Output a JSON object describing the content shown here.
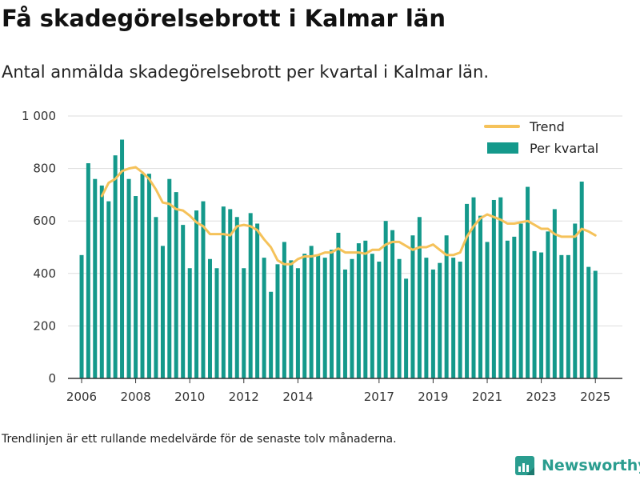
{
  "title": "Få skadegörelsebrott i Kalmar län",
  "subtitle": "Antal anmälda skadegörelsebrott per kvartal i Kalmar län.",
  "footnote": "Trendlinjen är ett rullande medelvärde för de senaste tolv månaderna.",
  "brand": {
    "name": "Newsworthy",
    "icon": "newsworthy-logo-icon"
  },
  "colors": {
    "bars": "#14998b",
    "trend": "#f5c25a",
    "grid": "#dddddd",
    "axis": "#333333"
  },
  "chart_data": {
    "type": "bar",
    "grid": true,
    "legend_position": "top-right",
    "ylim": [
      0,
      1000
    ],
    "y_ticks": [
      {
        "value": 0,
        "label": "0"
      },
      {
        "value": 200,
        "label": "200"
      },
      {
        "value": 400,
        "label": "400"
      },
      {
        "value": 600,
        "label": "600"
      },
      {
        "value": 800,
        "label": "800"
      },
      {
        "value": 1000,
        "label": "1 000"
      }
    ],
    "x_ticks": [
      {
        "date": "2006-01-01",
        "label": "2006"
      },
      {
        "date": "2008-01-01",
        "label": "2008"
      },
      {
        "date": "2010-01-01",
        "label": "2010"
      },
      {
        "date": "2012-01-01",
        "label": "2012"
      },
      {
        "date": "2014-01-01",
        "label": "2014"
      },
      {
        "date": "2017-01-01",
        "label": "2017"
      },
      {
        "date": "2019-01-01",
        "label": "2019"
      },
      {
        "date": "2021-01-01",
        "label": "2021"
      },
      {
        "date": "2023-01-01",
        "label": "2023"
      },
      {
        "date": "2025-01-01",
        "label": "2025"
      }
    ],
    "x_range": [
      "2005-07-01",
      "2026-01-01"
    ],
    "series": [
      {
        "name": "Per kvartal",
        "type": "bar",
        "x": [
          "2006-01-01",
          "2006-04-01",
          "2006-07-01",
          "2006-10-01",
          "2007-01-01",
          "2007-04-01",
          "2007-07-01",
          "2007-10-01",
          "2008-01-01",
          "2008-04-01",
          "2008-07-01",
          "2008-10-01",
          "2009-01-01",
          "2009-04-01",
          "2009-07-01",
          "2009-10-01",
          "2010-01-01",
          "2010-04-01",
          "2010-07-01",
          "2010-10-01",
          "2011-01-01",
          "2011-04-01",
          "2011-07-01",
          "2011-10-01",
          "2012-01-01",
          "2012-04-01",
          "2012-07-01",
          "2012-10-01",
          "2013-01-01",
          "2013-04-01",
          "2013-07-01",
          "2013-10-01",
          "2014-01-01",
          "2014-04-01",
          "2014-07-01",
          "2014-10-01",
          "2015-01-01",
          "2015-04-01",
          "2015-07-01",
          "2015-10-01",
          "2016-01-01",
          "2016-04-01",
          "2016-07-01",
          "2016-10-01",
          "2017-01-01",
          "2017-04-01",
          "2017-07-01",
          "2017-10-01",
          "2018-01-01",
          "2018-04-01",
          "2018-07-01",
          "2018-10-01",
          "2019-01-01",
          "2019-04-01",
          "2019-07-01",
          "2019-10-01",
          "2020-01-01",
          "2020-04-01",
          "2020-07-01",
          "2020-10-01",
          "2021-01-01",
          "2021-04-01",
          "2021-07-01",
          "2021-10-01",
          "2022-01-01",
          "2022-04-01",
          "2022-07-01",
          "2022-10-01",
          "2023-01-01",
          "2023-04-01",
          "2023-07-01",
          "2023-10-01",
          "2024-01-01",
          "2024-04-01",
          "2024-07-01",
          "2024-10-01",
          "2025-01-01"
        ],
        "values": [
          470,
          820,
          760,
          735,
          675,
          850,
          910,
          760,
          695,
          780,
          780,
          615,
          505,
          760,
          710,
          585,
          420,
          640,
          675,
          455,
          420,
          655,
          645,
          615,
          420,
          630,
          590,
          460,
          330,
          435,
          520,
          450,
          420,
          475,
          505,
          470,
          460,
          490,
          555,
          415,
          455,
          515,
          525,
          475,
          445,
          600,
          565,
          455,
          380,
          545,
          615,
          460,
          415,
          440,
          545,
          460,
          445,
          665,
          690,
          620,
          520,
          680,
          690,
          525,
          540,
          590,
          730,
          485,
          480,
          560,
          645,
          470,
          470,
          590,
          750,
          425,
          410
        ]
      },
      {
        "name": "Trend",
        "type": "line",
        "x": [
          "2006-10-01",
          "2007-01-01",
          "2007-04-01",
          "2007-07-01",
          "2007-10-01",
          "2008-01-01",
          "2008-04-01",
          "2008-07-01",
          "2008-10-01",
          "2009-01-01",
          "2009-04-01",
          "2009-07-01",
          "2009-10-01",
          "2010-01-01",
          "2010-04-01",
          "2010-07-01",
          "2010-10-01",
          "2011-01-01",
          "2011-04-01",
          "2011-07-01",
          "2011-10-01",
          "2012-01-01",
          "2012-04-01",
          "2012-07-01",
          "2012-10-01",
          "2013-01-01",
          "2013-04-01",
          "2013-07-01",
          "2013-10-01",
          "2014-01-01",
          "2014-04-01",
          "2014-07-01",
          "2014-10-01",
          "2015-01-01",
          "2015-04-01",
          "2015-07-01",
          "2015-10-01",
          "2016-01-01",
          "2016-04-01",
          "2016-07-01",
          "2016-10-01",
          "2017-01-01",
          "2017-04-01",
          "2017-07-01",
          "2017-10-01",
          "2018-01-01",
          "2018-04-01",
          "2018-07-01",
          "2018-10-01",
          "2019-01-01",
          "2019-04-01",
          "2019-07-01",
          "2019-10-01",
          "2020-01-01",
          "2020-04-01",
          "2020-07-01",
          "2020-10-01",
          "2021-01-01",
          "2021-04-01",
          "2021-07-01",
          "2021-10-01",
          "2022-01-01",
          "2022-04-01",
          "2022-07-01",
          "2022-10-01",
          "2023-01-01",
          "2023-04-01",
          "2023-07-01",
          "2023-10-01",
          "2024-01-01",
          "2024-04-01",
          "2024-07-01",
          "2024-10-01",
          "2025-01-01"
        ],
        "values": [
          695,
          745,
          760,
          790,
          800,
          805,
          785,
          760,
          720,
          670,
          665,
          645,
          640,
          620,
          595,
          580,
          550,
          550,
          550,
          545,
          580,
          585,
          580,
          565,
          530,
          500,
          450,
          435,
          435,
          455,
          465,
          465,
          470,
          480,
          480,
          495,
          480,
          480,
          480,
          475,
          490,
          490,
          510,
          520,
          520,
          505,
          490,
          500,
          500,
          510,
          490,
          470,
          470,
          480,
          540,
          580,
          610,
          625,
          615,
          605,
          590,
          590,
          595,
          600,
          585,
          570,
          570,
          550,
          540,
          540,
          540,
          570,
          560,
          545
        ]
      }
    ]
  }
}
